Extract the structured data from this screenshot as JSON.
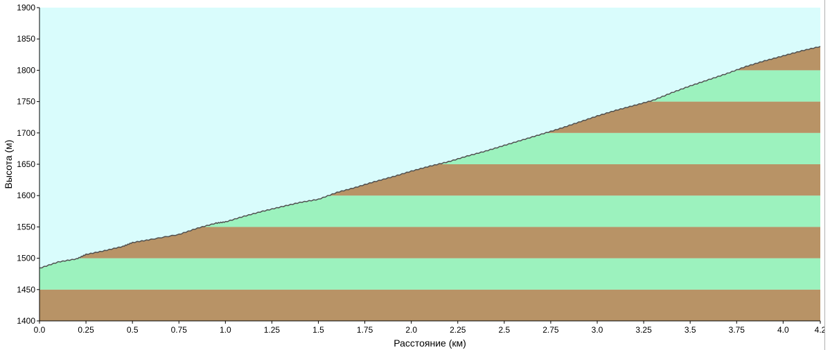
{
  "chart_data": {
    "type": "area",
    "title": "",
    "xlabel": "Расстояние  (км)",
    "ylabel": "Высота (м)",
    "xlim": [
      0,
      4.2
    ],
    "ylim": [
      1400,
      1900
    ],
    "x_ticks": [
      "0.0",
      "0.25",
      "0.5",
      "0.75",
      "1.0",
      "1.25",
      "1.5",
      "1.75",
      "2.0",
      "2.25",
      "2.5",
      "2.75",
      "3.0",
      "3.25",
      "3.5",
      "3.75",
      "4.0",
      "4.2"
    ],
    "x_tick_values": [
      0,
      0.25,
      0.5,
      0.75,
      1.0,
      1.25,
      1.5,
      1.75,
      2.0,
      2.25,
      2.5,
      2.75,
      3.0,
      3.25,
      3.5,
      3.75,
      4.0,
      4.2
    ],
    "y_ticks": [
      1400,
      1450,
      1500,
      1550,
      1600,
      1650,
      1700,
      1750,
      1800,
      1850,
      1900
    ],
    "band_step": 50,
    "grid": false,
    "series": [
      {
        "x": [
          0.0,
          0.1,
          0.2,
          0.25,
          0.35,
          0.45,
          0.5,
          0.6,
          0.75,
          0.85,
          0.95,
          1.0,
          1.1,
          1.2,
          1.3,
          1.4,
          1.5,
          1.6,
          1.7,
          1.8,
          1.9,
          2.0,
          2.1,
          2.2,
          2.3,
          2.4,
          2.5,
          2.6,
          2.7,
          2.8,
          2.9,
          3.0,
          3.1,
          3.2,
          3.3,
          3.4,
          3.5,
          3.6,
          3.7,
          3.8,
          3.9,
          4.0,
          4.1,
          4.2
        ],
        "values": [
          1484,
          1494,
          1499,
          1506,
          1512,
          1519,
          1525,
          1530,
          1538,
          1548,
          1556,
          1558,
          1567,
          1575,
          1582,
          1589,
          1594,
          1605,
          1613,
          1622,
          1630,
          1639,
          1647,
          1654,
          1663,
          1671,
          1680,
          1689,
          1698,
          1707,
          1717,
          1727,
          1736,
          1744,
          1752,
          1764,
          1775,
          1785,
          1795,
          1806,
          1815,
          1823,
          1831,
          1838
        ]
      }
    ],
    "colors": {
      "sky": "#d9fcfc",
      "band_brown": "#b89366",
      "band_green": "#9cf2be",
      "profile_line": "#505050",
      "axis": "#000000"
    }
  }
}
